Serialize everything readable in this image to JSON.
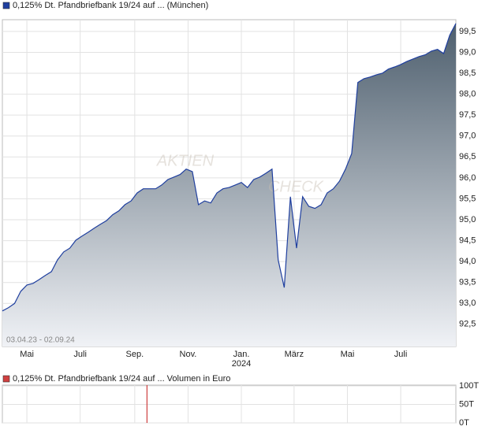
{
  "chart_data": [
    {
      "type": "area-line",
      "legend": "0,125% Dt. Pfandbriefbank 19/24 auf ... (München)",
      "color": "#1f3f9f",
      "date_range": "03.04.23 - 02.09.24",
      "watermark": [
        "AKTIEN",
        "CHECK"
      ],
      "grid": true,
      "xlim": [
        0,
        74
      ],
      "xticks": [
        {
          "value": 4,
          "label": "Mai"
        },
        {
          "value": 12.7,
          "label": "Juli"
        },
        {
          "value": 21.6,
          "label": "Sep."
        },
        {
          "value": 30.3,
          "label": "Nov."
        },
        {
          "value": 39,
          "label": "Jan.",
          "year": "2024"
        },
        {
          "value": 47.6,
          "label": "März"
        },
        {
          "value": 56.3,
          "label": "Mai"
        },
        {
          "value": 65,
          "label": "Juli"
        }
      ],
      "ylim": [
        91.97,
        99.78
      ],
      "yticks": [
        {
          "value": 92.5,
          "label": "92,5"
        },
        {
          "value": 93,
          "label": "93,0"
        },
        {
          "value": 93.5,
          "label": "93,5"
        },
        {
          "value": 94,
          "label": "94,0"
        },
        {
          "value": 94.5,
          "label": "94,5"
        },
        {
          "value": 95,
          "label": "95,0"
        },
        {
          "value": 95.5,
          "label": "95,5"
        },
        {
          "value": 96,
          "label": "96,0"
        },
        {
          "value": 96.5,
          "label": "96,5"
        },
        {
          "value": 97,
          "label": "97,0"
        },
        {
          "value": 97.5,
          "label": "97,5"
        },
        {
          "value": 98,
          "label": "98,0"
        },
        {
          "value": 98.5,
          "label": "98,5"
        },
        {
          "value": 99,
          "label": "99,0"
        },
        {
          "value": 99.5,
          "label": "99,5"
        }
      ],
      "values": [
        92.82,
        92.9,
        93.0,
        93.29,
        93.44,
        93.48,
        93.57,
        93.67,
        93.76,
        94.04,
        94.23,
        94.32,
        94.51,
        94.61,
        94.7,
        94.8,
        94.89,
        94.98,
        95.12,
        95.21,
        95.36,
        95.45,
        95.64,
        95.74,
        95.74,
        95.74,
        95.83,
        95.96,
        96.02,
        96.08,
        96.21,
        96.15,
        95.36,
        95.45,
        95.4,
        95.64,
        95.74,
        95.77,
        95.83,
        95.89,
        95.77,
        95.96,
        96.02,
        96.11,
        96.21,
        94.04,
        93.38,
        95.55,
        94.32,
        95.55,
        95.32,
        95.27,
        95.36,
        95.64,
        95.74,
        95.92,
        96.21,
        96.58,
        98.28,
        98.37,
        98.41,
        98.46,
        98.5,
        98.6,
        98.65,
        98.71,
        98.78,
        98.84,
        98.9,
        98.94,
        99.03,
        99.07,
        98.97,
        99.41,
        99.69
      ]
    },
    {
      "type": "bar",
      "legend": "0,125% Dt. Pfandbriefbank 19/24 auf ... Volumen in Euro",
      "color": "#d04040",
      "xlim": [
        0,
        74
      ],
      "x": [
        23.6
      ],
      "values": [
        102000
      ],
      "ylim": [
        0,
        102000
      ],
      "yticks": [
        {
          "value": 0,
          "label": "0T"
        },
        {
          "value": 50000,
          "label": "50T"
        },
        {
          "value": 100000,
          "label": "100T"
        }
      ]
    }
  ]
}
